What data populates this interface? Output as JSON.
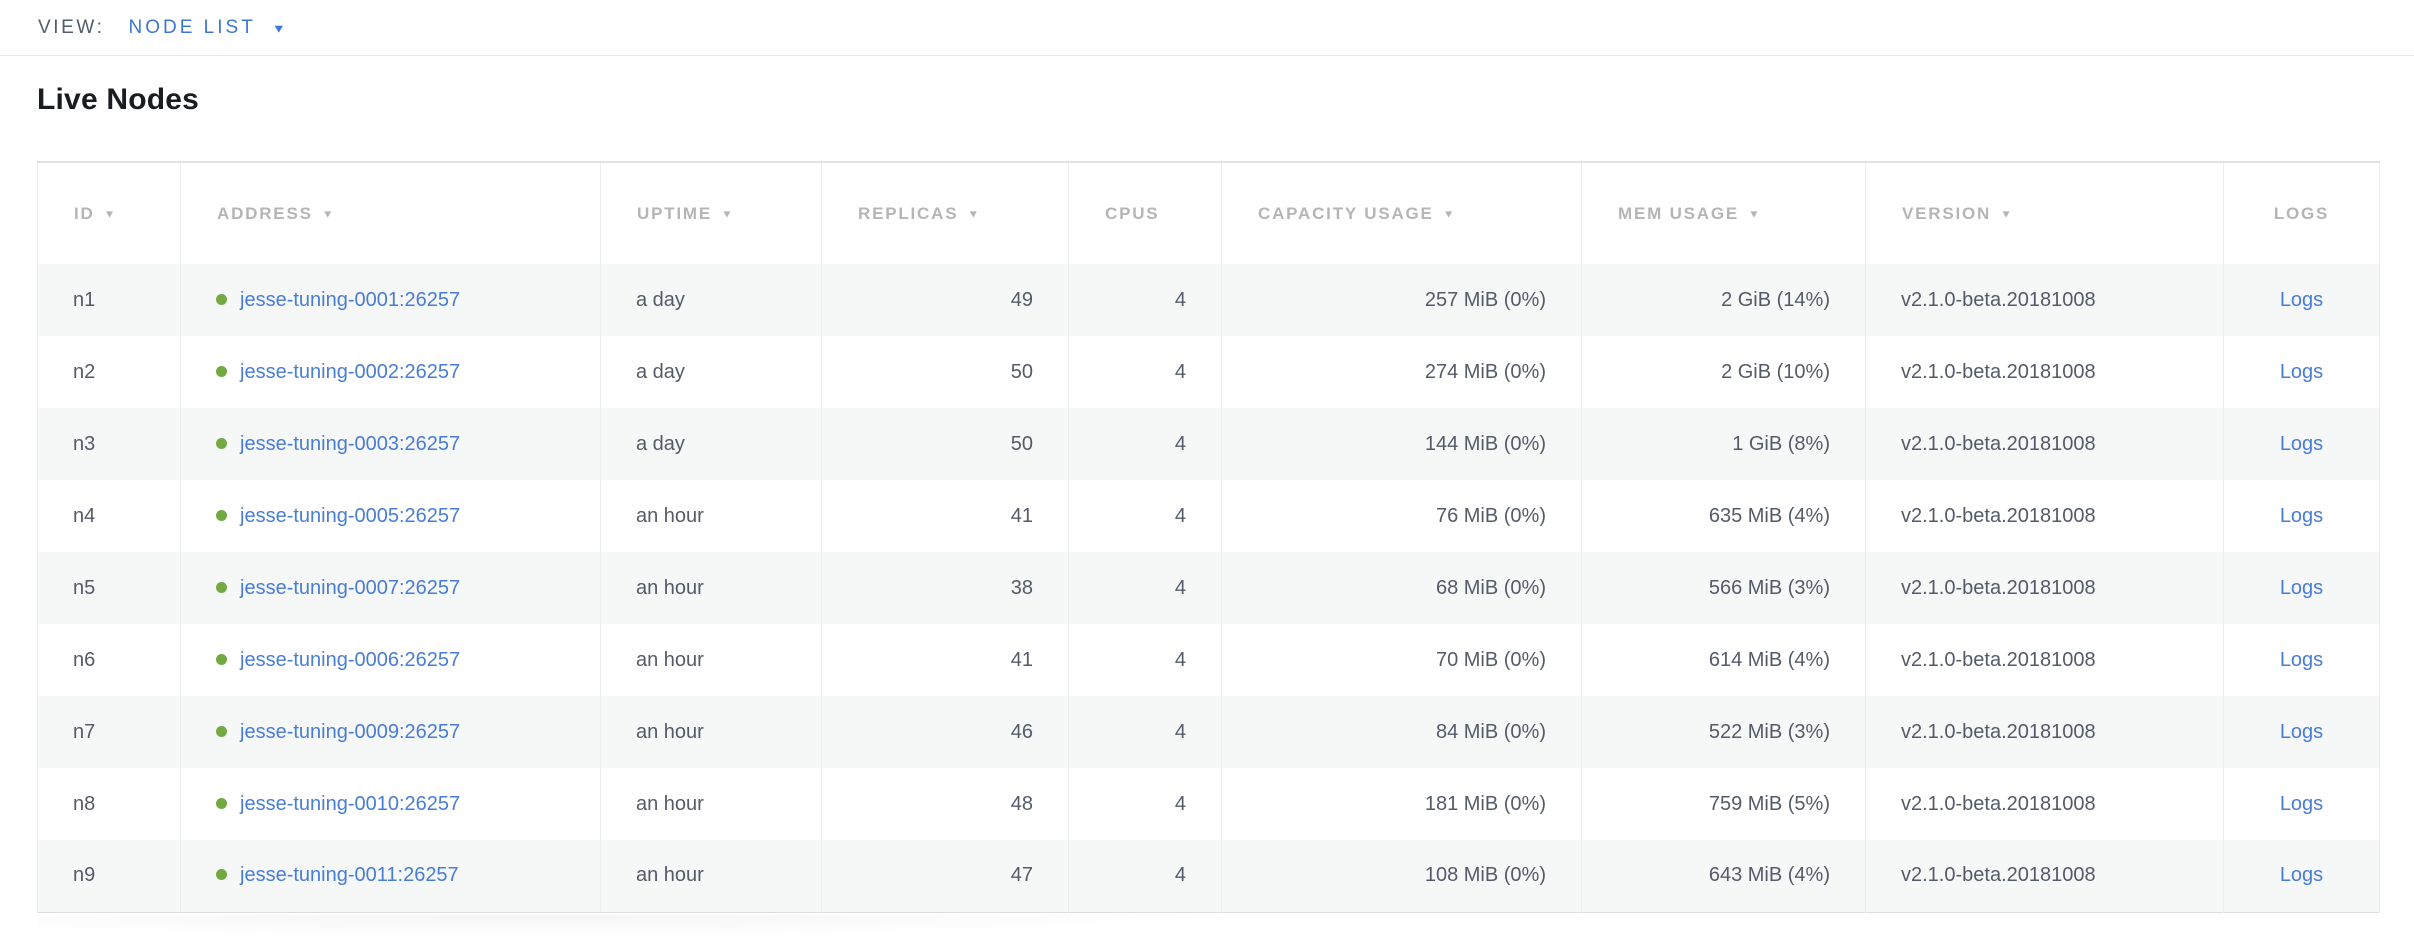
{
  "view_bar": {
    "label": "VIEW:",
    "selected": "NODE LIST"
  },
  "page": {
    "title": "Live Nodes"
  },
  "icons": {
    "dropdown_arrow": "▼",
    "sort_arrow": "▼",
    "status_dot": "live-status-dot"
  },
  "colors": {
    "accent_blue": "#3d76d6",
    "link_blue": "#487dd7",
    "status_green": "#73a943",
    "header_gray": "#b5b5b7",
    "body_text": "#545b68",
    "row_stripe": "#f6f7f7"
  },
  "table": {
    "columns": [
      {
        "id": "id",
        "label": "ID",
        "sortable": true
      },
      {
        "id": "address",
        "label": "ADDRESS",
        "sortable": true
      },
      {
        "id": "uptime",
        "label": "UPTIME",
        "sortable": true
      },
      {
        "id": "replicas",
        "label": "REPLICAS",
        "sortable": true
      },
      {
        "id": "cpus",
        "label": "CPUS",
        "sortable": false
      },
      {
        "id": "capacity",
        "label": "CAPACITY USAGE",
        "sortable": true
      },
      {
        "id": "mem",
        "label": "MEM USAGE",
        "sortable": true
      },
      {
        "id": "version",
        "label": "VERSION",
        "sortable": true
      },
      {
        "id": "logs",
        "label": "LOGS",
        "sortable": false
      }
    ],
    "rows": [
      {
        "id": "n1",
        "address": "jesse-tuning-0001:26257",
        "uptime": "a day",
        "replicas": "49",
        "cpus": "4",
        "capacity": "257 MiB (0%)",
        "mem": "2 GiB (14%)",
        "version": "v2.1.0-beta.20181008",
        "logs": "Logs"
      },
      {
        "id": "n2",
        "address": "jesse-tuning-0002:26257",
        "uptime": "a day",
        "replicas": "50",
        "cpus": "4",
        "capacity": "274 MiB (0%)",
        "mem": "2 GiB (10%)",
        "version": "v2.1.0-beta.20181008",
        "logs": "Logs"
      },
      {
        "id": "n3",
        "address": "jesse-tuning-0003:26257",
        "uptime": "a day",
        "replicas": "50",
        "cpus": "4",
        "capacity": "144 MiB (0%)",
        "mem": "1 GiB (8%)",
        "version": "v2.1.0-beta.20181008",
        "logs": "Logs"
      },
      {
        "id": "n4",
        "address": "jesse-tuning-0005:26257",
        "uptime": "an hour",
        "replicas": "41",
        "cpus": "4",
        "capacity": "76 MiB (0%)",
        "mem": "635 MiB (4%)",
        "version": "v2.1.0-beta.20181008",
        "logs": "Logs"
      },
      {
        "id": "n5",
        "address": "jesse-tuning-0007:26257",
        "uptime": "an hour",
        "replicas": "38",
        "cpus": "4",
        "capacity": "68 MiB (0%)",
        "mem": "566 MiB (3%)",
        "version": "v2.1.0-beta.20181008",
        "logs": "Logs"
      },
      {
        "id": "n6",
        "address": "jesse-tuning-0006:26257",
        "uptime": "an hour",
        "replicas": "41",
        "cpus": "4",
        "capacity": "70 MiB (0%)",
        "mem": "614 MiB (4%)",
        "version": "v2.1.0-beta.20181008",
        "logs": "Logs"
      },
      {
        "id": "n7",
        "address": "jesse-tuning-0009:26257",
        "uptime": "an hour",
        "replicas": "46",
        "cpus": "4",
        "capacity": "84 MiB (0%)",
        "mem": "522 MiB (3%)",
        "version": "v2.1.0-beta.20181008",
        "logs": "Logs"
      },
      {
        "id": "n8",
        "address": "jesse-tuning-0010:26257",
        "uptime": "an hour",
        "replicas": "48",
        "cpus": "4",
        "capacity": "181 MiB (0%)",
        "mem": "759 MiB (5%)",
        "version": "v2.1.0-beta.20181008",
        "logs": "Logs"
      },
      {
        "id": "n9",
        "address": "jesse-tuning-0011:26257",
        "uptime": "an hour",
        "replicas": "47",
        "cpus": "4",
        "capacity": "108 MiB (0%)",
        "mem": "643 MiB (4%)",
        "version": "v2.1.0-beta.20181008",
        "logs": "Logs"
      }
    ]
  }
}
